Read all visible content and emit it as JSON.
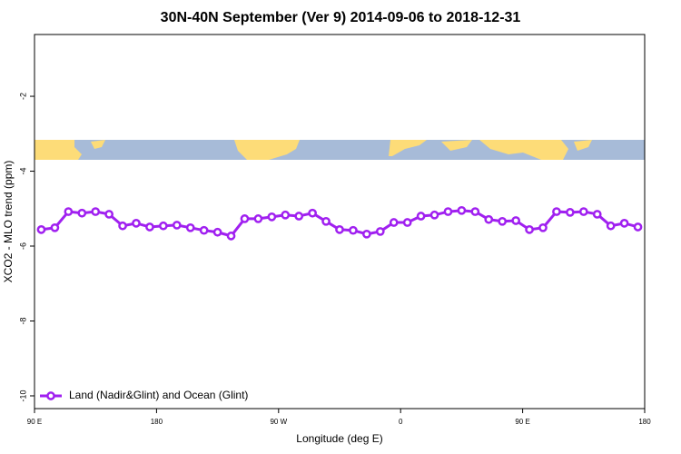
{
  "chart_data": {
    "type": "line",
    "title": "30N-40N September (Ver 9)   2014-09-06 to 2018-12-31",
    "x_label": "Longitude (deg E)",
    "y_label": "XCO2 - MLO trend (ppm)",
    "x": [
      95,
      105,
      115,
      125,
      135,
      145,
      155,
      165,
      175,
      185,
      195,
      205,
      215,
      225,
      235,
      245,
      255,
      265,
      275,
      285,
      295,
      305,
      315,
      325,
      335,
      345,
      355,
      365,
      375,
      385,
      395,
      405,
      415,
      425,
      435,
      445,
      455,
      465,
      475,
      485,
      495,
      505,
      515,
      525,
      535
    ],
    "series": [
      {
        "name": "Land (Nadir&Glint) and Ocean (Glint)",
        "color": "#a020f0",
        "values": [
          -5.56,
          -5.51,
          -5.08,
          -5.12,
          -5.08,
          -5.15,
          -5.46,
          -5.39,
          -5.49,
          -5.46,
          -5.44,
          -5.51,
          -5.58,
          -5.63,
          -5.73,
          -5.27,
          -5.27,
          -5.22,
          -5.17,
          -5.2,
          -5.12,
          -5.34,
          -5.56,
          -5.58,
          -5.68,
          -5.61,
          -5.37,
          -5.37,
          -5.2,
          -5.17,
          -5.08,
          -5.05,
          -5.08,
          -5.29,
          -5.34,
          -5.32,
          -5.56,
          -5.51,
          -5.08,
          -5.1,
          -5.08,
          -5.15,
          -5.46,
          -5.39,
          -5.49
        ]
      }
    ],
    "xlim": [
      90,
      540
    ],
    "xticks": [
      {
        "value": 90,
        "label": "90 E"
      },
      180,
      {
        "value": 270,
        "label": "90 W"
      },
      {
        "value": 360,
        "label": "0"
      },
      {
        "value": 450,
        "label": "90 E"
      },
      {
        "value": 540,
        "label": "180"
      }
    ],
    "ylim": [
      -10.34,
      -0.35
    ],
    "yticks": [
      -2,
      -4,
      -6,
      -8,
      -10
    ],
    "legend": "bottom-left"
  }
}
